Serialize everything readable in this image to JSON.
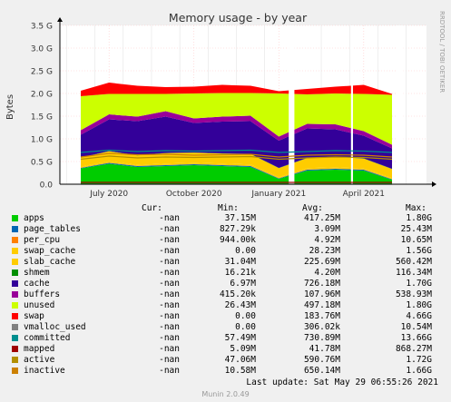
{
  "chart_data": {
    "type": "area",
    "title": "Memory usage - by year",
    "ylabel": "Bytes",
    "side_label": "RRDTOOL / TOBI OETIKER",
    "y_ticks": [
      {
        "v": 0,
        "label": "0.0"
      },
      {
        "v": 0.5,
        "label": "0.5 G"
      },
      {
        "v": 1.0,
        "label": "1.0 G"
      },
      {
        "v": 1.5,
        "label": "1.5 G"
      },
      {
        "v": 2.0,
        "label": "2.0 G"
      },
      {
        "v": 2.5,
        "label": "2.5 G"
      },
      {
        "v": 3.0,
        "label": "3.0 G"
      },
      {
        "v": 3.5,
        "label": "3.5 G"
      }
    ],
    "ylim": [
      0,
      3.5
    ],
    "x_ticks": [
      "July 2020",
      "October 2020",
      "January 2021",
      "April 2021"
    ],
    "x": [
      "2020-06",
      "2020-07",
      "2020-08",
      "2020-09",
      "2020-10",
      "2020-11",
      "2020-12",
      "2021-01",
      "2021-02",
      "2021-03",
      "2021-04",
      "2021-05"
    ],
    "grid": true,
    "series": [
      {
        "name": "apps",
        "color": "#00cc00",
        "values": [
          0.35,
          0.45,
          0.38,
          0.4,
          0.42,
          0.4,
          0.38,
          0.12,
          0.3,
          0.32,
          0.3,
          0.1
        ]
      },
      {
        "name": "page_tables",
        "color": "#0066b3",
        "values": [
          0.01,
          0.02,
          0.02,
          0.02,
          0.02,
          0.02,
          0.02,
          0.01,
          0.02,
          0.02,
          0.02,
          0.01
        ]
      },
      {
        "name": "per_cpu",
        "color": "#ff8000",
        "values": [
          0.005,
          0.005,
          0.005,
          0.005,
          0.005,
          0.005,
          0.005,
          0.005,
          0.005,
          0.005,
          0.005,
          0.005
        ]
      },
      {
        "name": "swap_cache",
        "color": "#ffcc00",
        "values": [
          0.02,
          0.03,
          0.02,
          0.03,
          0.03,
          0.03,
          0.03,
          0.02,
          0.03,
          0.03,
          0.02,
          0.02
        ]
      },
      {
        "name": "slab_cache",
        "color": "#ffcc00",
        "values": [
          0.2,
          0.22,
          0.21,
          0.23,
          0.22,
          0.22,
          0.23,
          0.2,
          0.22,
          0.23,
          0.22,
          0.2
        ]
      },
      {
        "name": "shmem",
        "color": "#008f00",
        "values": [
          0.004,
          0.004,
          0.004,
          0.004,
          0.004,
          0.004,
          0.004,
          0.004,
          0.004,
          0.004,
          0.004,
          0.004
        ]
      },
      {
        "name": "cache",
        "color": "#330099",
        "values": [
          0.5,
          0.7,
          0.75,
          0.8,
          0.65,
          0.7,
          0.72,
          0.6,
          0.65,
          0.6,
          0.5,
          0.45
        ]
      },
      {
        "name": "buffers",
        "color": "#990099",
        "values": [
          0.1,
          0.11,
          0.1,
          0.12,
          0.1,
          0.11,
          0.12,
          0.09,
          0.1,
          0.11,
          0.1,
          0.08
        ]
      },
      {
        "name": "unused",
        "color": "#ccff00",
        "values": [
          0.75,
          0.45,
          0.5,
          0.38,
          0.55,
          0.52,
          0.5,
          0.95,
          0.65,
          0.68,
          0.82,
          1.1
        ]
      },
      {
        "name": "swap",
        "color": "#ff0000",
        "values": [
          0.12,
          0.25,
          0.18,
          0.15,
          0.15,
          0.18,
          0.16,
          0.05,
          0.12,
          0.15,
          0.2,
          0.02
        ]
      },
      {
        "name": "vmalloc_used",
        "color": "#808080",
        "values": [
          0.0003,
          0.0003,
          0.0003,
          0.0003,
          0.0003,
          0.0003,
          0.0003,
          0.0003,
          0.0003,
          0.0003,
          0.0003,
          0.0003
        ]
      },
      {
        "name": "committed",
        "color": "#008f8f",
        "values": [
          0.7,
          0.75,
          0.72,
          0.74,
          0.73,
          0.74,
          0.75,
          0.7,
          0.72,
          0.74,
          0.73,
          0.7
        ]
      },
      {
        "name": "mapped",
        "color": "#a00000",
        "values": [
          0.04,
          0.04,
          0.04,
          0.04,
          0.04,
          0.04,
          0.04,
          0.04,
          0.04,
          0.04,
          0.04,
          0.04
        ]
      },
      {
        "name": "active",
        "color": "#b38f00",
        "values": [
          0.55,
          0.62,
          0.58,
          0.6,
          0.59,
          0.6,
          0.61,
          0.55,
          0.58,
          0.6,
          0.59,
          0.55
        ]
      },
      {
        "name": "inactive",
        "color": "#cc8000",
        "values": [
          0.6,
          0.68,
          0.65,
          0.66,
          0.64,
          0.65,
          0.66,
          0.6,
          0.64,
          0.65,
          0.64,
          0.6
        ]
      }
    ]
  },
  "legend": {
    "headers": {
      "cur": "Cur:",
      "min": "Min:",
      "avg": "Avg:",
      "max": "Max:"
    },
    "rows": [
      {
        "name": "apps",
        "color": "#00cc00",
        "cur": "-nan",
        "min": "37.15M",
        "avg": "417.25M",
        "max": "1.80G"
      },
      {
        "name": "page_tables",
        "color": "#0066b3",
        "cur": "-nan",
        "min": "827.29k",
        "avg": "3.09M",
        "max": "25.43M"
      },
      {
        "name": "per_cpu",
        "color": "#ff8000",
        "cur": "-nan",
        "min": "944.00k",
        "avg": "4.92M",
        "max": "10.65M"
      },
      {
        "name": "swap_cache",
        "color": "#ffcc00",
        "cur": "-nan",
        "min": "0.00",
        "avg": "28.23M",
        "max": "1.56G"
      },
      {
        "name": "slab_cache",
        "color": "#ffcc00",
        "cur": "-nan",
        "min": "31.04M",
        "avg": "225.69M",
        "max": "560.42M"
      },
      {
        "name": "shmem",
        "color": "#008f00",
        "cur": "-nan",
        "min": "16.21k",
        "avg": "4.20M",
        "max": "116.34M"
      },
      {
        "name": "cache",
        "color": "#330099",
        "cur": "-nan",
        "min": "6.97M",
        "avg": "726.18M",
        "max": "1.70G"
      },
      {
        "name": "buffers",
        "color": "#990099",
        "cur": "-nan",
        "min": "415.20k",
        "avg": "107.96M",
        "max": "538.93M"
      },
      {
        "name": "unused",
        "color": "#ccff00",
        "cur": "-nan",
        "min": "26.43M",
        "avg": "497.18M",
        "max": "1.80G"
      },
      {
        "name": "swap",
        "color": "#ff0000",
        "cur": "-nan",
        "min": "0.00",
        "avg": "183.76M",
        "max": "4.66G"
      },
      {
        "name": "vmalloc_used",
        "color": "#808080",
        "cur": "-nan",
        "min": "0.00",
        "avg": "306.02k",
        "max": "10.54M"
      },
      {
        "name": "committed",
        "color": "#008f8f",
        "cur": "-nan",
        "min": "57.49M",
        "avg": "730.89M",
        "max": "13.66G"
      },
      {
        "name": "mapped",
        "color": "#a00000",
        "cur": "-nan",
        "min": "5.09M",
        "avg": "41.78M",
        "max": "868.27M"
      },
      {
        "name": "active",
        "color": "#b38f00",
        "cur": "-nan",
        "min": "47.06M",
        "avg": "590.76M",
        "max": "1.72G"
      },
      {
        "name": "inactive",
        "color": "#cc8000",
        "cur": "-nan",
        "min": "10.58M",
        "avg": "650.14M",
        "max": "1.66G"
      }
    ]
  },
  "footer": {
    "last_update": "Last update: Sat May 29 06:55:26 2021",
    "munin": "Munin 2.0.49"
  }
}
